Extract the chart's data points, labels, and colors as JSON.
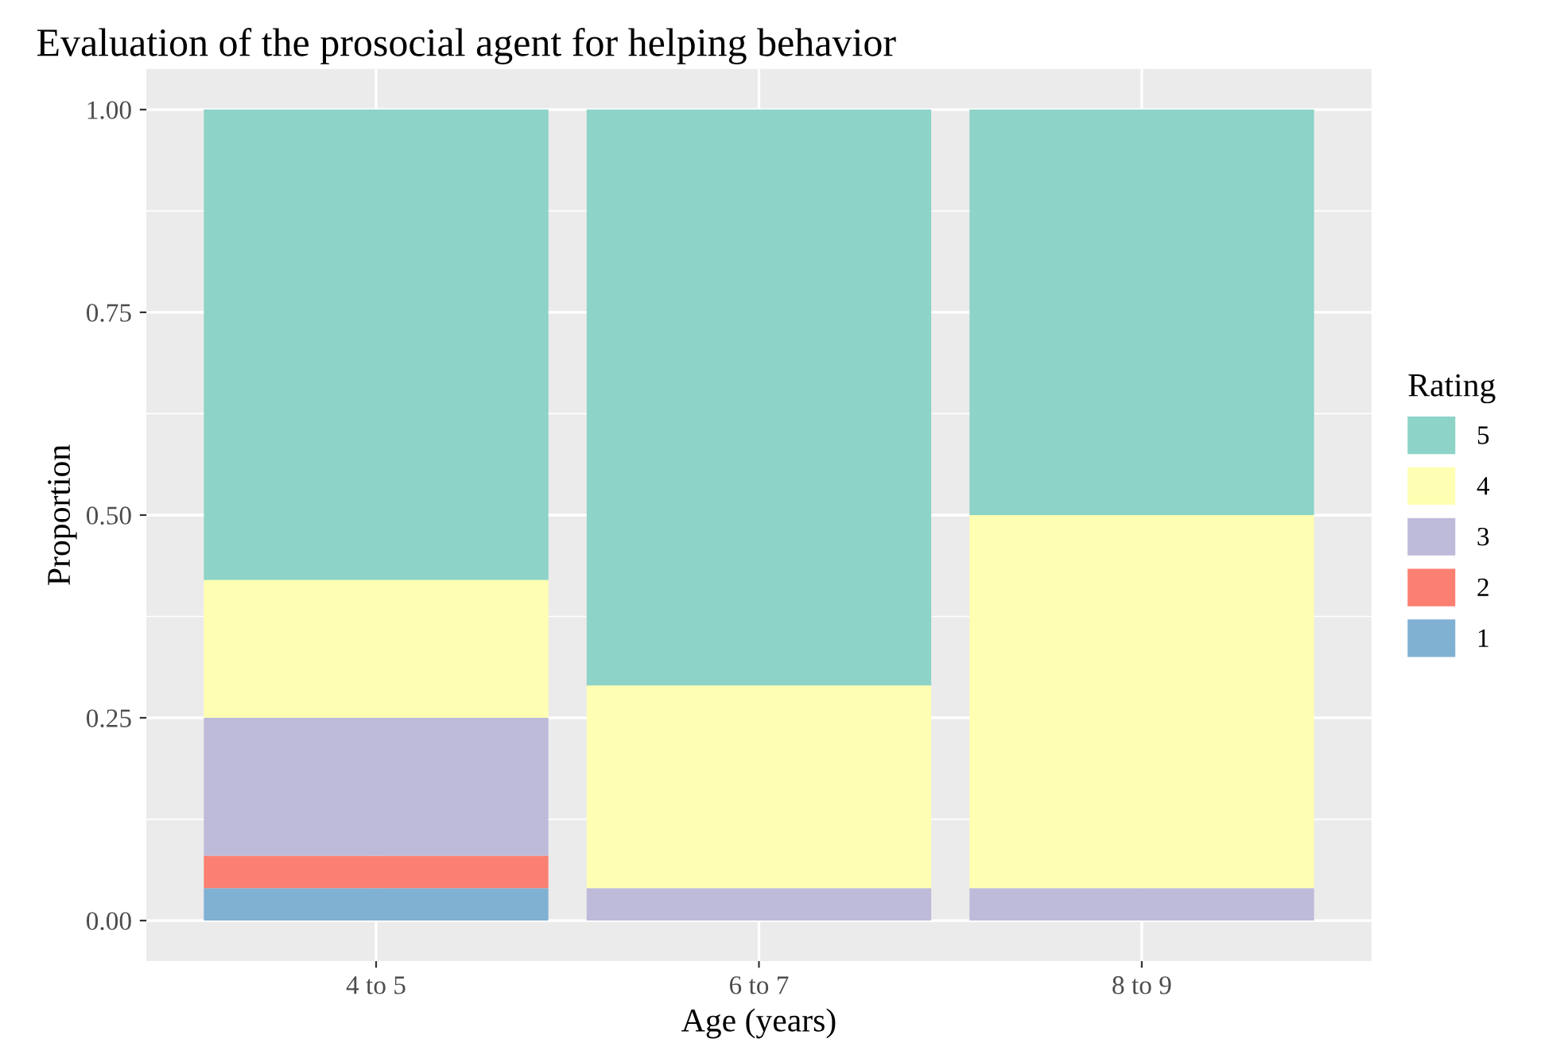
{
  "chart_data": {
    "type": "bar",
    "title": "Evaluation of the prosocial agent for helping behavior",
    "xlabel": "Age (years)",
    "ylabel": "Proportion",
    "legend_title": "Rating",
    "categories": [
      "4 to 5",
      "6 to 7",
      "8 to 9"
    ],
    "stacked": true,
    "series": [
      {
        "name": "1",
        "color": "#80b1d3",
        "values": [
          0.04,
          0,
          0
        ]
      },
      {
        "name": "2",
        "color": "#fb8072",
        "values": [
          0.04,
          0,
          0
        ]
      },
      {
        "name": "3",
        "color": "#bebada",
        "values": [
          0.17,
          0.04,
          0.04
        ]
      },
      {
        "name": "4",
        "color": "#ffffb3",
        "values": [
          0.17,
          0.25,
          0.46
        ]
      },
      {
        "name": "5",
        "color": "#8dd3c7",
        "values": [
          0.58,
          0.71,
          0.5
        ]
      }
    ],
    "ylim": [
      -0.05,
      1.05
    ],
    "yticks": [
      {
        "value": 0,
        "label": "0.00"
      },
      {
        "value": 0.25,
        "label": "0.25"
      },
      {
        "value": 0.5,
        "label": "0.50"
      },
      {
        "value": 0.75,
        "label": "0.75"
      },
      {
        "value": 1,
        "label": "1.00"
      }
    ],
    "grid": true,
    "legend": "right"
  }
}
